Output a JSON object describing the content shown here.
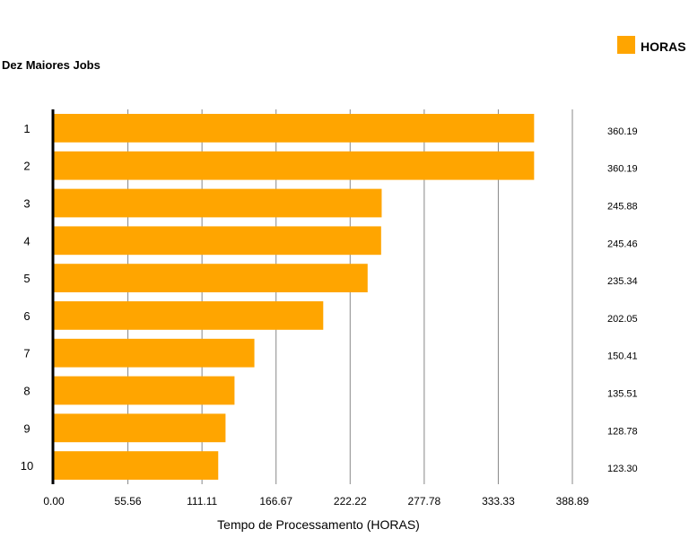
{
  "chart_data": {
    "type": "bar",
    "orientation": "horizontal",
    "title": "Dez Maiores Jobs",
    "xlabel": "Tempo de Processamento (HORAS)",
    "ylabel": "",
    "categories": [
      "1",
      "2",
      "3",
      "4",
      "5",
      "6",
      "7",
      "8",
      "9",
      "10"
    ],
    "series": [
      {
        "name": "HORAS",
        "color": "#FFA500",
        "values": [
          360.19,
          360.19,
          245.88,
          245.46,
          235.34,
          202.05,
          150.41,
          135.51,
          128.78,
          123.3
        ],
        "labels": [
          "360.19",
          "360.19",
          "245.88",
          "245.46",
          "235.34",
          "202.05",
          "150.41",
          "135.51",
          "128.78",
          "123.30"
        ]
      }
    ],
    "xlim": [
      0,
      388.89
    ],
    "x_ticks": [
      "0.00",
      "55.56",
      "111.11",
      "166.67",
      "222.22",
      "277.78",
      "333.33",
      "388.89"
    ],
    "grid": true,
    "legend_position": "top-right"
  }
}
